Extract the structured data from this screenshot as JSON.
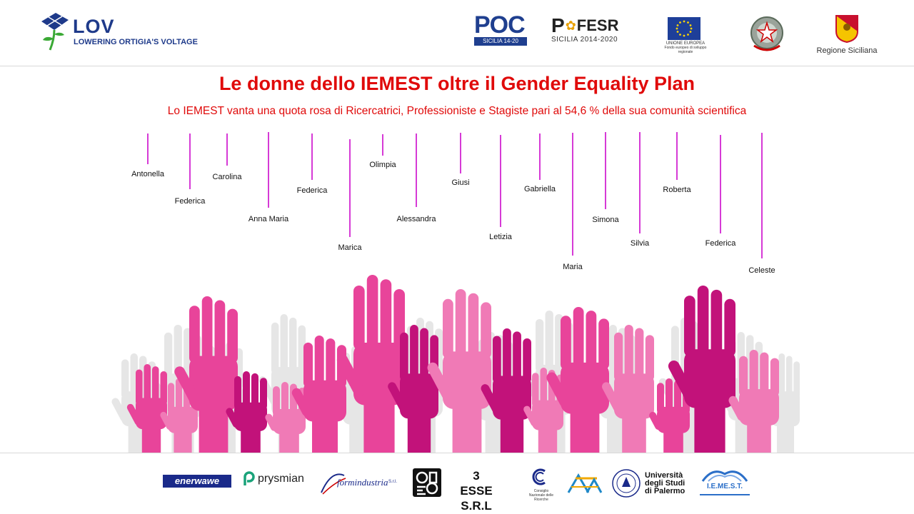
{
  "header": {
    "lov_title": "LOV",
    "lov_subtitle": "LOWERING ORTIGIA'S VOLTAGE",
    "poc_caption": "SICILIA 14-20",
    "fesr_label": "FESR",
    "fesr_caption": "SICILIA 2014-2020",
    "eu_caption_1": "UNIONE EUROPEA",
    "eu_caption_2": "Fondo europeo di sviluppo regionale",
    "regione_caption": "Regione Siciliana"
  },
  "main": {
    "title": "Le donne dello IEMEST oltre il Gender Equality Plan",
    "subtitle": "Lo IEMEST vanta una quota rosa di Ricercatrici, Professioniste e Stagiste pari al 54,6 % della sua comunità scientifica",
    "names": [
      "Antonella",
      "Federica",
      "Carolina",
      "Anna Maria",
      "Federica",
      "Marica",
      "Olimpia",
      "Alessandra",
      "Giusi",
      "Letizia",
      "Gabriella",
      "Maria",
      "Simona",
      "Silvia",
      "Roberta",
      "Federica",
      "Celeste"
    ]
  },
  "footer": {
    "enerwawe": "enerwawe",
    "prysmian": "prysmian",
    "formindustria": "formindustria",
    "formindustria_suffix": "S.r.l.",
    "tre_esse_1": "3 ESSE",
    "tre_esse_2": "S.R.L",
    "cnr_caption": "Consiglio Nazionale delle Ricerche",
    "unipa_1": "Università",
    "unipa_2": "degli Studi",
    "unipa_3": "di Palermo",
    "iemest": "I.E.ME.S.T."
  },
  "colors": {
    "title_red": "#e00a0a",
    "line_pink": "#d63ad6",
    "lov_blue": "#1e3a8a",
    "hand_magenta": "#c2127a",
    "hand_pink": "#e8449a",
    "hand_light": "#f07ab6",
    "hand_grey": "#e6e6e6"
  }
}
